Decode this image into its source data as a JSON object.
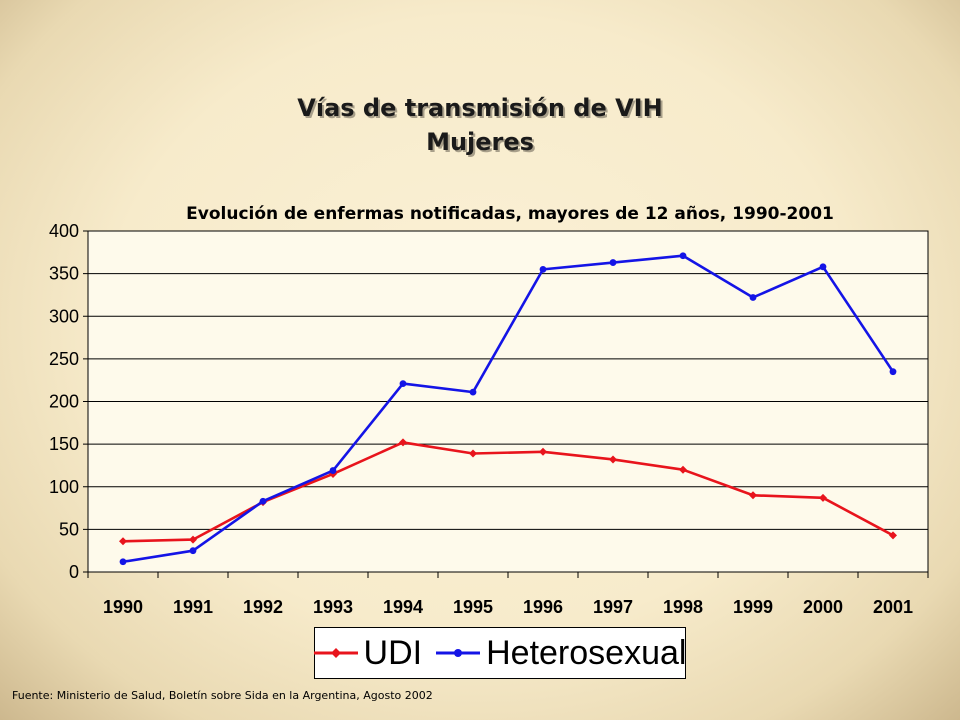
{
  "slide": {
    "title_line1": "Vías de transmisión de VIH",
    "title_line2": "Mujeres",
    "footer": "Fuente: Ministerio de Salud, Boletín sobre Sida en la Argentina, Agosto 2002"
  },
  "chart_data": {
    "type": "line",
    "title": "Evolución de enfermas notificadas, mayores de 12 años, 1990-2001",
    "xlabel": "",
    "ylabel": "",
    "categories": [
      "1990",
      "1991",
      "1992",
      "1993",
      "1994",
      "1995",
      "1996",
      "1997",
      "1998",
      "1999",
      "2000",
      "2001"
    ],
    "ylim": [
      0,
      400
    ],
    "yticks": [
      0,
      50,
      100,
      150,
      200,
      250,
      300,
      350,
      400
    ],
    "grid": true,
    "legend_position": "bottom",
    "series": [
      {
        "name": "UDI",
        "color": "#e8141c",
        "marker": "diamond",
        "values": [
          36,
          38,
          82,
          115,
          152,
          139,
          141,
          132,
          120,
          90,
          87,
          43
        ]
      },
      {
        "name": "Heterosexual",
        "color": "#1414e6",
        "marker": "circle",
        "values": [
          12,
          25,
          83,
          119,
          221,
          211,
          355,
          363,
          371,
          322,
          358,
          235
        ]
      }
    ]
  }
}
